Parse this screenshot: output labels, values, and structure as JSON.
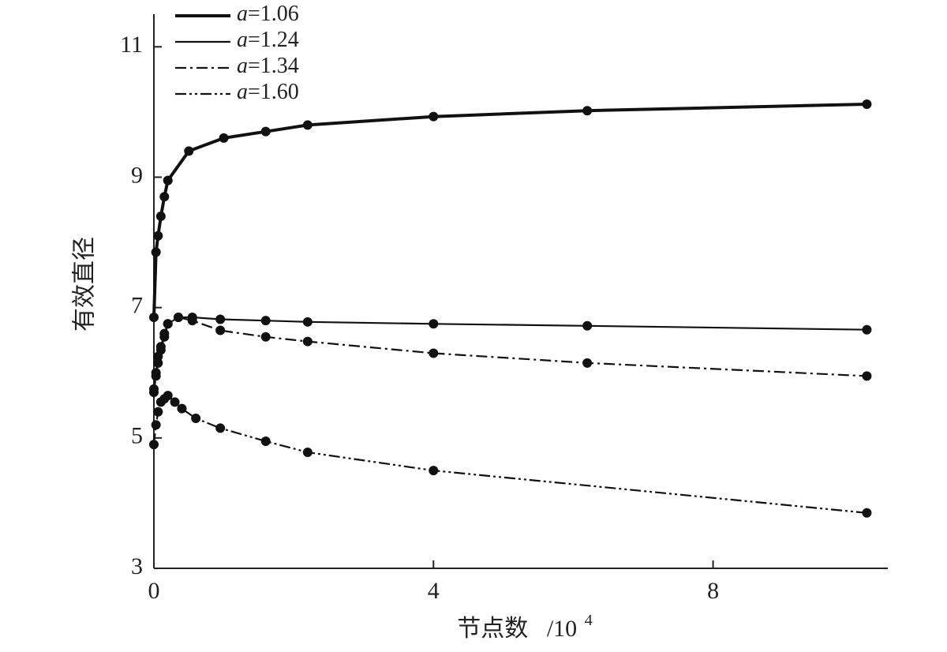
{
  "chart_data": {
    "type": "line",
    "title": "",
    "xlabel": "节点数",
    "xlabel_unit": "/10",
    "xlabel_exp": "4",
    "ylabel": "有效直径",
    "xlim": [
      0,
      10.5
    ],
    "ylim": [
      3,
      11.5
    ],
    "xticks": [
      0,
      4,
      8
    ],
    "xtick_labels": [
      "0",
      "4",
      "8"
    ],
    "yticks": [
      3,
      5,
      7,
      9,
      11
    ],
    "ytick_labels": [
      "3",
      "5",
      "7",
      "9",
      "11"
    ],
    "grid": false,
    "legend_position": "top-left",
    "series": [
      {
        "name": "a=1.06",
        "legend_var": "a",
        "legend_value": "=1.06",
        "style": "solid-thick",
        "x": [
          0,
          0.03,
          0.06,
          0.1,
          0.15,
          0.2,
          0.5,
          1.0,
          1.6,
          2.2,
          4.0,
          6.2,
          10.2
        ],
        "y": [
          6.85,
          7.85,
          8.1,
          8.4,
          8.7,
          8.95,
          9.4,
          9.6,
          9.7,
          9.8,
          9.93,
          10.02,
          10.12
        ]
      },
      {
        "name": "a=1.24",
        "legend_var": "a",
        "legend_value": "=1.24",
        "style": "solid-thin",
        "x": [
          0,
          0.03,
          0.06,
          0.1,
          0.15,
          0.2,
          0.35,
          0.55,
          0.95,
          1.6,
          2.2,
          4.0,
          6.2,
          10.2
        ],
        "y": [
          5.75,
          6.0,
          6.25,
          6.4,
          6.6,
          6.75,
          6.85,
          6.85,
          6.82,
          6.8,
          6.78,
          6.75,
          6.72,
          6.66
        ]
      },
      {
        "name": "a=1.34",
        "legend_var": "a",
        "legend_value": "=1.34",
        "style": "dash-dot",
        "x": [
          0,
          0.03,
          0.06,
          0.1,
          0.15,
          0.2,
          0.35,
          0.55,
          0.95,
          1.6,
          2.2,
          4.0,
          6.2,
          10.2
        ],
        "y": [
          5.7,
          5.95,
          6.15,
          6.35,
          6.55,
          6.75,
          6.85,
          6.8,
          6.65,
          6.55,
          6.48,
          6.3,
          6.15,
          5.95
        ]
      },
      {
        "name": "a=1.60",
        "legend_var": "a",
        "legend_value": "=1.60",
        "style": "dash-dot-dot",
        "x": [
          0,
          0.03,
          0.06,
          0.1,
          0.15,
          0.2,
          0.3,
          0.4,
          0.6,
          0.95,
          1.6,
          2.2,
          4.0,
          10.2
        ],
        "y": [
          4.9,
          5.2,
          5.4,
          5.55,
          5.6,
          5.65,
          5.55,
          5.45,
          5.3,
          5.15,
          4.95,
          4.78,
          4.5,
          3.85
        ]
      }
    ]
  }
}
